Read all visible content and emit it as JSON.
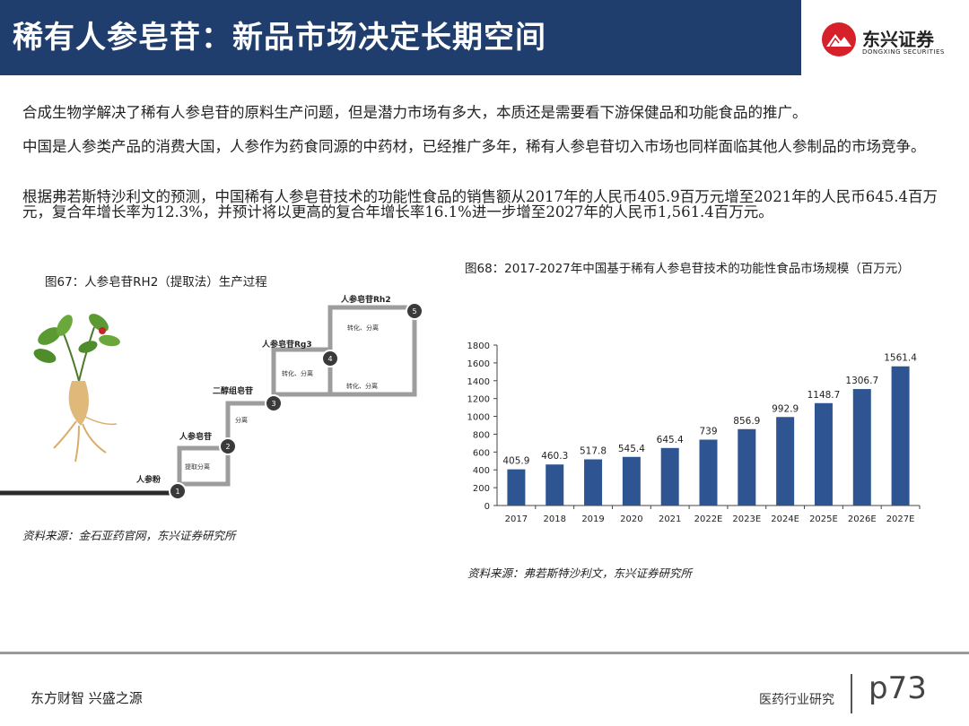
{
  "header": {
    "title": "稀有人参皂苷：新品市场决定长期空间",
    "logo_cn": "东兴证券",
    "logo_en": "DONGXING SECURITIES"
  },
  "paragraphs": [
    "合成生物学解决了稀有人参皂苷的原料生产问题，但是潜力市场有多大，本质还是需要看下游保健品和功能食品的推广。",
    "中国是人参类产品的消费大国，人参作为药食同源的中药材，已经推广多年，稀有人参皂苷切入市场也同样面临其他人参制品的市场竞争。",
    "根据弗若斯特沙利文的预测，中国稀有人参皂苷技术的功能性食品的销售额从2017年的人民币405.9百万元增至2021年的人民币645.4百万元，复合年增长率为12.3%，并预计将以更高的复合年增长率16.1%进一步增至2027年的人民币1,561.4百万元。"
  ],
  "figure67": {
    "title": "图67：人参皂苷RH2（提取法）生产过程",
    "source": "资料来源：金石亚药官网，东兴证券研究所",
    "steps": [
      {
        "num": "1",
        "label": "人参粉"
      },
      {
        "num": "2",
        "label": "人参皂苷"
      },
      {
        "num": "3",
        "label": "二醇组皂苷"
      },
      {
        "num": "4",
        "label": "人参皂苷Rg3"
      },
      {
        "num": "5",
        "label": "人参皂苷Rh2"
      }
    ],
    "process_labels": [
      "提取分离",
      "分离",
      "转化、分离",
      "转化、分离",
      "转化、分离"
    ]
  },
  "figure68": {
    "title": "图68：2017-2027年中国基于稀有人参皂苷技术的功能性食品市场规模（百万元）",
    "source": "资料来源：弗若斯特沙利文，东兴证券研究所"
  },
  "chart_data": {
    "type": "bar",
    "categories": [
      "2017",
      "2018",
      "2019",
      "2020",
      "2021",
      "2022E",
      "2023E",
      "2024E",
      "2025E",
      "2026E",
      "2027E"
    ],
    "values": [
      405.9,
      460.3,
      517.8,
      545.4,
      645.4,
      739,
      856.9,
      992.9,
      1148.7,
      1306.7,
      1561.4
    ],
    "value_labels": [
      "405.9",
      "460.3",
      "517.8",
      "545.4",
      "645.4",
      "739",
      "856.9",
      "992.9",
      "1148.7",
      "1306.7",
      "1561.4"
    ],
    "yticks": [
      "0",
      "200",
      "400",
      "600",
      "800",
      "1000",
      "1200",
      "1400",
      "1600",
      "1800"
    ],
    "ylim": [
      0,
      1800
    ],
    "bar_color": "#2e5592",
    "grid": false
  },
  "footer": {
    "left": "东方财智 兴盛之源",
    "right": "医药行业研究",
    "page": "p73"
  }
}
